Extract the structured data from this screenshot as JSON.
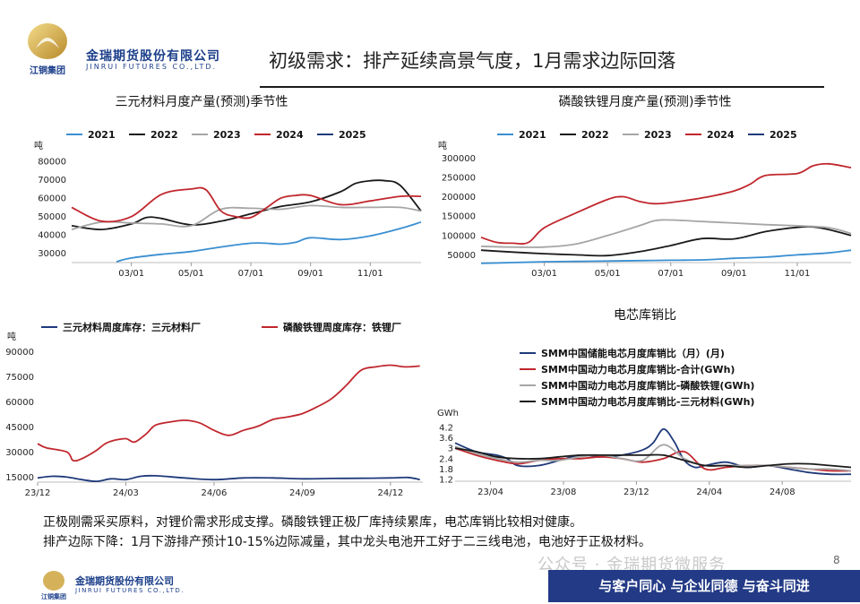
{
  "header": {
    "company_cn": "金瑞期货股份有限公司",
    "company_en": "JINRUI FUTURES CO.,LTD.",
    "logo_text": "江铜集团",
    "title": "初级需求：排产延续高景气度，1月需求边际回落"
  },
  "footer": {
    "lines": [
      "正极刚需采买原料，对锂价需求形成支撑。磷酸铁锂正极厂库持续累库，电芯库销比较相对健康。",
      "排产边际下降：1月下游排产预计10-15%边际减量，其中龙头电池开工好于二三线电池，电池好于正极材料。"
    ],
    "slogan": "与客户同心 与企业同德 与奋斗同进",
    "watermark": "公众号 · 金瑞期货微服务",
    "page": "8",
    "company_cn": "金瑞期货股份有限公司",
    "company_en": "JINRUI FUTURES CO.,LTD.",
    "logo_text": "江铜集团"
  },
  "colors": {
    "s2021": "#3a8fd1",
    "s2022": "#1a1a1a",
    "s2023": "#a6a6a6",
    "s2024": "#c0272d",
    "s2025": "#1f3a7a"
  },
  "chart_data": [
    {
      "id": "ncm",
      "type": "line",
      "title": "三元材料月度产量(预测)季节性",
      "ylabel": "吨",
      "ylim": [
        25000,
        82000
      ],
      "yticks": [
        30000,
        40000,
        50000,
        60000,
        70000,
        80000
      ],
      "ytick_labels": [
        "30000",
        "40000",
        "50000",
        "60000",
        "70000",
        "80000"
      ],
      "xlim": [
        1,
        12.7
      ],
      "xticks": [
        3,
        5,
        7,
        9,
        11
      ],
      "xtick_labels": [
        "03/01",
        "05/01",
        "07/01",
        "09/01",
        "11/01"
      ],
      "series": [
        {
          "name": "2021",
          "color": "#3a8fd1",
          "x": [
            2.5,
            3,
            4,
            5,
            6,
            7,
            7.5,
            8,
            8.5,
            9,
            10,
            11,
            12,
            12.7
          ],
          "y": [
            25500,
            27500,
            29500,
            31000,
            33500,
            35500,
            35500,
            35000,
            36000,
            38500,
            37500,
            39500,
            43500,
            47000
          ]
        },
        {
          "name": "2022",
          "color": "#1a1a1a",
          "x": [
            1,
            2,
            3,
            3.5,
            4,
            5,
            6,
            7,
            8,
            9,
            10,
            10.5,
            11,
            11.5,
            12,
            12.7
          ],
          "y": [
            45000,
            43000,
            46000,
            49500,
            49000,
            45500,
            47500,
            51500,
            55500,
            58000,
            63500,
            68000,
            69500,
            69500,
            67000,
            53000
          ]
        },
        {
          "name": "2023",
          "color": "#a6a6a6",
          "x": [
            1,
            2,
            3,
            4,
            5,
            6,
            7,
            8,
            9,
            10,
            11,
            12,
            12.7
          ],
          "y": [
            43000,
            47000,
            46500,
            46000,
            45000,
            54000,
            54500,
            54000,
            56000,
            55000,
            55000,
            55000,
            53000
          ]
        },
        {
          "name": "2024",
          "color": "#c0272d",
          "x": [
            1,
            2,
            3,
            4,
            5,
            5.5,
            6,
            6.5,
            7,
            7.5,
            8,
            8.5,
            9,
            10,
            11,
            12,
            12.7
          ],
          "y": [
            55000,
            47500,
            50000,
            62000,
            65000,
            64500,
            53000,
            50000,
            49500,
            54500,
            60000,
            61500,
            61500,
            56500,
            58500,
            61000,
            61000
          ]
        },
        {
          "name": "2025",
          "color": "#1f3a7a",
          "x": [],
          "y": []
        }
      ]
    },
    {
      "id": "lfp",
      "type": "line",
      "title": "磷酸铁锂月度产量(预测)季节性",
      "ylabel": "吨",
      "ylim": [
        30000,
        310000
      ],
      "yticks": [
        50000,
        100000,
        150000,
        200000,
        250000,
        300000
      ],
      "ytick_labels": [
        "50000",
        "100000",
        "150000",
        "200000",
        "250000",
        "300000"
      ],
      "xlim": [
        1,
        12.7
      ],
      "xticks": [
        3,
        5,
        7,
        9,
        11
      ],
      "xtick_labels": [
        "03/01",
        "05/01",
        "07/01",
        "09/01",
        "11/01"
      ],
      "series": [
        {
          "name": "2021",
          "color": "#3a8fd1",
          "x": [
            1,
            2,
            3,
            4,
            5,
            6,
            7,
            8,
            9,
            10,
            11,
            12,
            12.7
          ],
          "y": [
            28000,
            30000,
            32000,
            33000,
            34000,
            35000,
            36000,
            37000,
            41000,
            44000,
            50000,
            55000,
            62000
          ]
        },
        {
          "name": "2022",
          "color": "#1a1a1a",
          "x": [
            1,
            2,
            3,
            4,
            5,
            6,
            7,
            8,
            9,
            10,
            11,
            11.5,
            12,
            12.7
          ],
          "y": [
            62000,
            57000,
            53000,
            50000,
            48000,
            58000,
            74000,
            92000,
            91000,
            110000,
            121000,
            122000,
            115000,
            100000
          ]
        },
        {
          "name": "2023",
          "color": "#a6a6a6",
          "x": [
            1,
            2,
            3,
            4,
            5,
            6,
            6.5,
            7,
            8,
            9,
            10,
            11,
            12,
            12.7
          ],
          "y": [
            72000,
            70000,
            70000,
            78000,
            100000,
            125000,
            138000,
            140000,
            136000,
            132000,
            128000,
            125000,
            120000,
            105000
          ]
        },
        {
          "name": "2024",
          "color": "#c0272d",
          "x": [
            1,
            1.5,
            2,
            2.5,
            3,
            4,
            5,
            5.5,
            6,
            6.5,
            7,
            8,
            9,
            9.5,
            10,
            11,
            11.5,
            12,
            12.7
          ],
          "y": [
            95000,
            82000,
            80000,
            82000,
            120000,
            158000,
            193000,
            200000,
            188000,
            182000,
            185000,
            197000,
            215000,
            232000,
            255000,
            260000,
            280000,
            285000,
            275000
          ]
        },
        {
          "name": "2025",
          "color": "#1f3a7a",
          "x": [],
          "y": []
        }
      ]
    },
    {
      "id": "inventory",
      "type": "line",
      "title": "",
      "ylabel": "吨",
      "ylim": [
        12000,
        93000
      ],
      "yticks": [
        15000,
        30000,
        45000,
        60000,
        75000,
        90000
      ],
      "ytick_labels": [
        "15000",
        "30000",
        "45000",
        "60000",
        "75000",
        "90000"
      ],
      "xlim": [
        0,
        13.1
      ],
      "xticks": [
        0,
        3,
        6,
        9,
        12
      ],
      "xtick_labels": [
        "23/12",
        "24/03",
        "24/06",
        "24/09",
        "24/12"
      ],
      "series": [
        {
          "name": "三元材料周度库存：三元材料厂",
          "color": "#1f3a7a",
          "x": [
            0,
            0.5,
            1,
            1.5,
            2,
            2.5,
            3,
            3.5,
            4,
            5,
            6,
            7,
            8,
            9,
            10,
            11,
            12,
            12.6,
            13
          ],
          "y": [
            14500,
            15500,
            15000,
            13500,
            12500,
            14000,
            13500,
            15500,
            15800,
            14500,
            13500,
            14500,
            14500,
            14000,
            14200,
            14300,
            14500,
            14800,
            13500
          ]
        },
        {
          "name": "磷酸铁锂周度库存：铁锂厂",
          "color": "#c0272d",
          "x": [
            0,
            0.3,
            1,
            1.2,
            1.5,
            2,
            2.3,
            2.6,
            3,
            3.3,
            3.7,
            4,
            4.5,
            5,
            5.5,
            6,
            6.5,
            7,
            7.5,
            8,
            8.5,
            9,
            9.5,
            10,
            10.5,
            11,
            11.5,
            12,
            12.5,
            13
          ],
          "y": [
            35000,
            32500,
            30000,
            25000,
            26000,
            31000,
            35000,
            37000,
            38000,
            36000,
            41000,
            46000,
            48000,
            49000,
            47500,
            43000,
            40000,
            43000,
            45500,
            49500,
            51000,
            53000,
            57000,
            62000,
            70000,
            79000,
            81000,
            82000,
            81000,
            81500
          ]
        }
      ]
    },
    {
      "id": "cell-ratio",
      "type": "line",
      "title": "电芯库销比",
      "ylabel": "GWh",
      "ylim": [
        1.1,
        4.4
      ],
      "yticks": [
        1.2,
        1.8,
        2.4,
        3,
        3.6,
        4.2
      ],
      "ytick_labels": [
        "1.2",
        "1.8",
        "2.4",
        "3",
        "3.6",
        "4.2"
      ],
      "xlim": [
        0,
        19
      ],
      "xticks": [
        1.7,
        5.2,
        8.7,
        12.2,
        15.7
      ],
      "xtick_labels": [
        "23/04",
        "23/08",
        "23/12",
        "24/04",
        "24/08"
      ],
      "series": [
        {
          "name": "SMM中国储能电芯月度库销比（月）(月)",
          "color": "#1f3a7a",
          "x": [
            0,
            1,
            2,
            2.5,
            3,
            4,
            5,
            6,
            7,
            8,
            9,
            9.5,
            10,
            10.5,
            11,
            11.5,
            12,
            13,
            14,
            15,
            16,
            17,
            18,
            19
          ],
          "y": [
            3.3,
            2.8,
            2.6,
            2.4,
            2.0,
            2.0,
            2.3,
            2.6,
            2.5,
            2.6,
            2.9,
            3.3,
            4.1,
            3.4,
            2.3,
            1.9,
            2.0,
            2.2,
            1.9,
            2.0,
            1.8,
            1.6,
            1.5,
            1.5
          ]
        },
        {
          "name": "SMM中国动力电芯月度库销比-合计(GWh)",
          "color": "#c0272d",
          "x": [
            0,
            1,
            2,
            3,
            4,
            5,
            6,
            7,
            8,
            9,
            10,
            11,
            12,
            13,
            14,
            15,
            16,
            17,
            18,
            19
          ],
          "y": [
            3.0,
            2.6,
            2.3,
            2.1,
            2.3,
            2.4,
            2.4,
            2.5,
            2.4,
            2.2,
            2.4,
            2.8,
            1.8,
            1.9,
            2.0,
            2.0,
            1.9,
            1.8,
            1.7,
            1.7
          ]
        },
        {
          "name": "SMM中国动力电芯月度库销比-磷酸铁锂(GWh)",
          "color": "#a6a6a6",
          "x": [
            0,
            1,
            2,
            3,
            4,
            5,
            6,
            7,
            8,
            9,
            10,
            11,
            12,
            13,
            14,
            15,
            16,
            17,
            18,
            19
          ],
          "y": [
            3.1,
            2.7,
            2.4,
            2.2,
            2.3,
            2.3,
            2.5,
            2.6,
            2.4,
            2.3,
            3.2,
            2.4,
            2.0,
            2.0,
            2.0,
            2.0,
            1.9,
            1.8,
            1.8,
            1.7
          ]
        },
        {
          "name": "SMM中国动力电芯月度库销比-三元材料(GWh)",
          "color": "#1a1a1a",
          "x": [
            0,
            1,
            2,
            3,
            4,
            5,
            6,
            7,
            8,
            9,
            10,
            11,
            12,
            13,
            14,
            15,
            16,
            17,
            18,
            19
          ],
          "y": [
            3.0,
            2.8,
            2.5,
            2.4,
            2.4,
            2.5,
            2.6,
            2.6,
            2.6,
            2.6,
            2.6,
            2.3,
            2.0,
            2.0,
            1.9,
            2.0,
            2.1,
            2.1,
            2.0,
            1.9
          ]
        }
      ]
    }
  ]
}
